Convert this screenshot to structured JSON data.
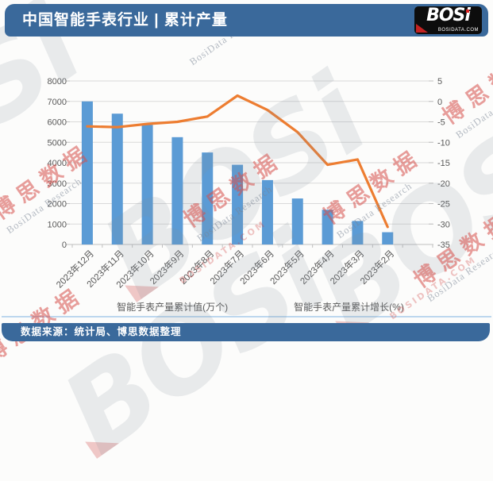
{
  "header": {
    "title": "中国智能手表行业 | 累计产量",
    "logo": {
      "text": "BOSi",
      "domain": "BOSIDATA.COM"
    }
  },
  "watermark": {
    "logo_text": "BOSi",
    "logo_domain": "BOSIDATA.COM",
    "cn_text": "博思数据",
    "en_text": "BosiData Research"
  },
  "footer": {
    "source_text": "数据来源：统计局、博思数据整理"
  },
  "chart_data": {
    "type": "bar",
    "title": "中国智能手表行业 | 累计产量",
    "xlabel": "",
    "ylabel_left": "智能手表产量累计值(万个)",
    "ylabel_right": "智能手表产量累计增长(%)",
    "grid": true,
    "legend_position": "bottom",
    "categories": [
      "2023年12月",
      "2023年11月",
      "2023年10月",
      "2023年9月",
      "2023年8月",
      "2023年7月",
      "2023年6月",
      "2023年5月",
      "2023年4月",
      "2023年3月",
      "2023年2月"
    ],
    "series": [
      {
        "name": "智能手表产量累计值(万个)",
        "type": "bar",
        "axis": "left",
        "color": "#5B9BD5",
        "values": [
          7000,
          6400,
          5850,
          5250,
          4500,
          3900,
          3150,
          2250,
          1700,
          1150,
          600
        ]
      },
      {
        "name": "智能手表产量累计增长(%)",
        "type": "line",
        "axis": "right",
        "color": "#ED7D31",
        "values": [
          -6.1,
          -6.3,
          -5.5,
          -5.0,
          -3.7,
          1.4,
          -2.1,
          -7.5,
          -15.5,
          -14.2,
          -30.7
        ]
      }
    ],
    "left_axis": {
      "min": 0,
      "max": 8000,
      "ticks": [
        8000,
        7000,
        6000,
        5000,
        4000,
        3000,
        2000,
        1000,
        0
      ]
    },
    "right_axis": {
      "min": -35,
      "max": 5,
      "ticks": [
        5,
        0,
        -5,
        -10,
        -15,
        -20,
        -25,
        -30,
        -35
      ]
    }
  }
}
